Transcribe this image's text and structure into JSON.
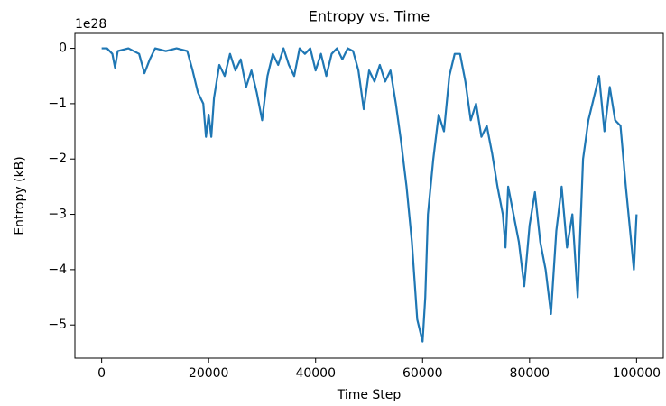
{
  "chart_data": {
    "type": "line",
    "title": "Entropy vs. Time",
    "x_label": "Time Step",
    "y_label": "Entropy (kB)",
    "y_offset_label": "1e28",
    "x": [
      0,
      1000,
      2000,
      2500,
      3000,
      5000,
      7000,
      8000,
      9000,
      10000,
      12000,
      14000,
      16000,
      17000,
      18000,
      19000,
      19500,
      20000,
      20500,
      21000,
      22000,
      23000,
      24000,
      25000,
      26000,
      27000,
      28000,
      29000,
      30000,
      31000,
      32000,
      33000,
      34000,
      35000,
      36000,
      37000,
      38000,
      39000,
      40000,
      41000,
      42000,
      43000,
      44000,
      45000,
      46000,
      47000,
      48000,
      49000,
      50000,
      51000,
      52000,
      53000,
      54000,
      55000,
      56000,
      57000,
      58000,
      59000,
      60000,
      60500,
      61000,
      62000,
      63000,
      64000,
      65000,
      66000,
      67000,
      68000,
      69000,
      70000,
      71000,
      72000,
      73000,
      74000,
      75000,
      75500,
      76000,
      77000,
      78000,
      79000,
      80000,
      81000,
      82000,
      83000,
      84000,
      85000,
      86000,
      87000,
      88000,
      89000,
      90000,
      91000,
      92000,
      93000,
      94000,
      95000,
      96000,
      97000,
      98000,
      99000,
      99500,
      100000
    ],
    "series": [
      {
        "name": "Entropy",
        "color": "#1f77b4",
        "values": [
          0,
          0,
          -0.1,
          -0.35,
          -0.05,
          0,
          -0.1,
          -0.45,
          -0.2,
          0,
          -0.05,
          0,
          -0.05,
          -0.4,
          -0.8,
          -1.0,
          -1.6,
          -1.2,
          -1.6,
          -0.9,
          -0.3,
          -0.5,
          -0.1,
          -0.4,
          -0.2,
          -0.7,
          -0.4,
          -0.8,
          -1.3,
          -0.5,
          -0.1,
          -0.3,
          0,
          -0.3,
          -0.5,
          0,
          -0.1,
          0,
          -0.4,
          -0.1,
          -0.5,
          -0.1,
          0,
          -0.2,
          0,
          -0.05,
          -0.4,
          -1.1,
          -0.4,
          -0.6,
          -0.3,
          -0.6,
          -0.4,
          -1.0,
          -1.7,
          -2.5,
          -3.5,
          -4.9,
          -5.3,
          -4.5,
          -3.0,
          -2.0,
          -1.2,
          -1.5,
          -0.5,
          -0.1,
          -0.1,
          -0.6,
          -1.3,
          -1.0,
          -1.6,
          -1.4,
          -1.9,
          -2.5,
          -3.0,
          -3.6,
          -2.5,
          -3.0,
          -3.5,
          -4.3,
          -3.2,
          -2.6,
          -3.5,
          -4.0,
          -4.8,
          -3.3,
          -2.5,
          -3.6,
          -3.0,
          -4.5,
          -2.0,
          -1.3,
          -0.9,
          -0.5,
          -1.5,
          -0.7,
          -1.3,
          -1.4,
          -2.5,
          -3.5,
          -4.0,
          -3.0
        ]
      }
    ],
    "xlim": [
      -5000,
      105000
    ],
    "xticks": [
      0,
      20000,
      40000,
      60000,
      80000,
      100000
    ],
    "ylim": [
      -5.6,
      0.27
    ],
    "yticks": [
      {
        "value": -5,
        "label": "−5"
      },
      {
        "value": -4,
        "label": "−4"
      },
      {
        "value": -3,
        "label": "−3"
      },
      {
        "value": -2,
        "label": "−2"
      },
      {
        "value": -1,
        "label": "−1"
      },
      0
    ]
  }
}
